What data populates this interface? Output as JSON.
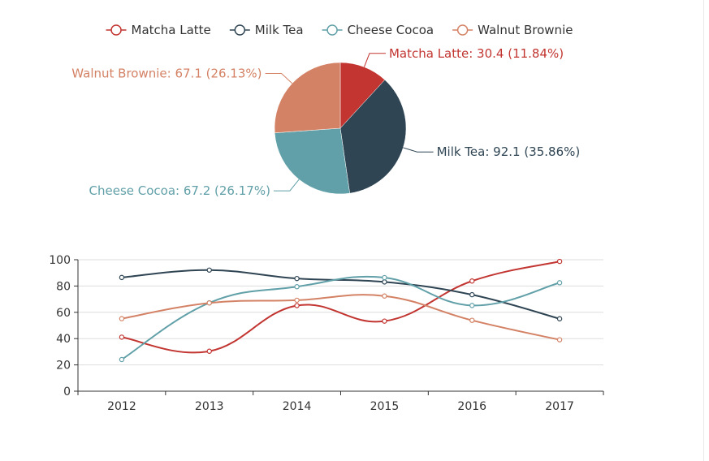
{
  "colors": {
    "Matcha Latte": "#c23531",
    "Milk Tea": "#2f4554",
    "Cheese Cocoa": "#61a0a8",
    "Walnut Brownie": "#d48265",
    "axis": "#333333",
    "grid": "#dddddd",
    "tick_text": "#333333"
  },
  "chart_data": [
    {
      "type": "pie",
      "legend": [
        "Matcha Latte",
        "Milk Tea",
        "Cheese Cocoa",
        "Walnut Brownie"
      ],
      "legend_position": "top-center",
      "slices": [
        {
          "name": "Matcha Latte",
          "value": 30.4,
          "percent": "11.84%",
          "label": "Matcha Latte: 30.4 (11.84%)"
        },
        {
          "name": "Milk Tea",
          "value": 92.1,
          "percent": "35.86%",
          "label": "Milk Tea: 92.1 (35.86%)"
        },
        {
          "name": "Cheese Cocoa",
          "value": 67.2,
          "percent": "26.17%",
          "label": "Cheese Cocoa: 67.2 (26.17%)"
        },
        {
          "name": "Walnut Brownie",
          "value": 67.1,
          "percent": "26.13%",
          "label": "Walnut Brownie: 67.1 (26.13%)"
        }
      ]
    },
    {
      "type": "line",
      "smooth": true,
      "categories": [
        "2012",
        "2013",
        "2014",
        "2015",
        "2016",
        "2017"
      ],
      "ylim": [
        0,
        100
      ],
      "yticks": [
        0,
        20,
        40,
        60,
        80,
        100
      ],
      "grid": true,
      "series": [
        {
          "name": "Matcha Latte",
          "values": [
            41.1,
            30.4,
            65.1,
            53.3,
            83.8,
            98.7
          ]
        },
        {
          "name": "Milk Tea",
          "values": [
            86.5,
            92.1,
            85.7,
            83.1,
            73.4,
            55.1
          ]
        },
        {
          "name": "Cheese Cocoa",
          "values": [
            24.1,
            67.2,
            79.5,
            86.4,
            65.2,
            82.5
          ]
        },
        {
          "name": "Walnut Brownie",
          "values": [
            55.2,
            67.1,
            69.2,
            72.4,
            53.9,
            39.1
          ]
        }
      ]
    }
  ]
}
